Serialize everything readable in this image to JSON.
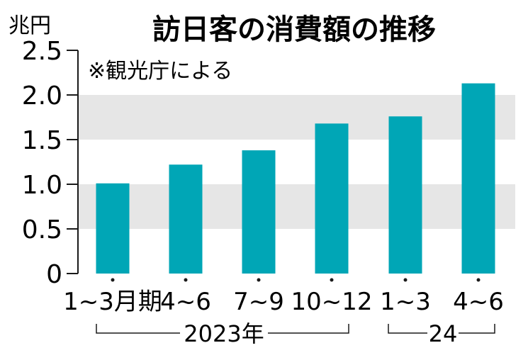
{
  "chart_data": {
    "type": "bar",
    "title": "訪日客の消費額の推移",
    "unit": "兆円",
    "source": "※観光庁による",
    "ylim": [
      0,
      2.5
    ],
    "yticks": [
      "0",
      "0.5",
      "1.0",
      "1.5",
      "2.0",
      "2.5"
    ],
    "categories": [
      "1~3月期",
      "4~6",
      "7~9",
      "10~12",
      "1~3",
      "4~6"
    ],
    "values": [
      1.01,
      1.22,
      1.38,
      1.68,
      1.76,
      2.13
    ],
    "year_groups": [
      {
        "label": "2023年",
        "categories": [
          "1~3月期",
          "4~6",
          "7~9",
          "10~12"
        ]
      },
      {
        "label": "24",
        "categories": [
          "1~3",
          "4~6"
        ]
      }
    ],
    "grid": "alternating horizontal bands",
    "colors": {
      "bar": "#00a6b6",
      "band": "#e6e6e6",
      "axis": "#1a1a1a"
    }
  }
}
